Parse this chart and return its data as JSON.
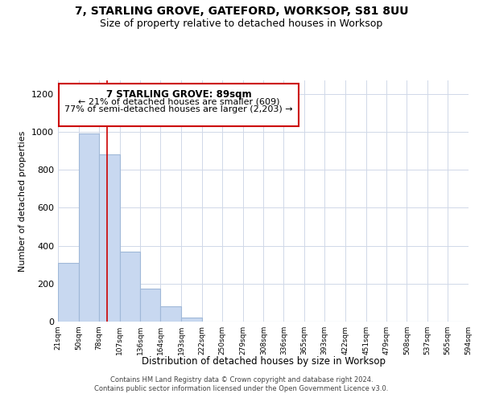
{
  "title": "7, STARLING GROVE, GATEFORD, WORKSOP, S81 8UU",
  "subtitle": "Size of property relative to detached houses in Worksop",
  "xlabel": "Distribution of detached houses by size in Worksop",
  "ylabel": "Number of detached properties",
  "bin_edges": [
    21,
    50,
    78,
    107,
    136,
    164,
    193,
    222,
    250,
    279,
    308,
    336,
    365,
    393,
    422,
    451,
    479,
    508,
    537,
    565,
    594
  ],
  "bin_labels": [
    "21sqm",
    "50sqm",
    "78sqm",
    "107sqm",
    "136sqm",
    "164sqm",
    "193sqm",
    "222sqm",
    "250sqm",
    "279sqm",
    "308sqm",
    "336sqm",
    "365sqm",
    "393sqm",
    "422sqm",
    "451sqm",
    "479sqm",
    "508sqm",
    "537sqm",
    "565sqm",
    "594sqm"
  ],
  "bar_heights": [
    310,
    990,
    880,
    370,
    175,
    80,
    20,
    0,
    0,
    0,
    0,
    0,
    0,
    0,
    0,
    0,
    0,
    0,
    0,
    0
  ],
  "bar_color": "#c8d8f0",
  "bar_edgecolor": "#a0b8d8",
  "property_line_x": 89,
  "annotation_title": "7 STARLING GROVE: 89sqm",
  "annotation_line1": "← 21% of detached houses are smaller (609)",
  "annotation_line2": "77% of semi-detached houses are larger (2,203) →",
  "red_line_color": "#cc0000",
  "annotation_box_edgecolor": "#cc0000",
  "ylim": [
    0,
    1270
  ],
  "footer_line1": "Contains HM Land Registry data © Crown copyright and database right 2024.",
  "footer_line2": "Contains public sector information licensed under the Open Government Licence v3.0.",
  "background_color": "#ffffff",
  "grid_color": "#d0d8e8"
}
